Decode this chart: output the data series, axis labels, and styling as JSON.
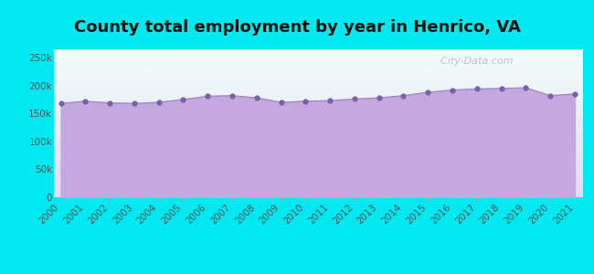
{
  "title": "County total employment by year in Henrico, VA",
  "years": [
    2000,
    2001,
    2002,
    2003,
    2004,
    2005,
    2006,
    2007,
    2008,
    2009,
    2010,
    2011,
    2012,
    2013,
    2014,
    2015,
    2016,
    2017,
    2018,
    2019,
    2020,
    2021
  ],
  "values": [
    168000,
    172000,
    169000,
    168000,
    170000,
    175000,
    181000,
    182000,
    178000,
    170000,
    172000,
    173000,
    176000,
    178000,
    182000,
    188000,
    192000,
    194000,
    195000,
    196000,
    182000,
    185000
  ],
  "ylim": [
    0,
    265000
  ],
  "yticks": [
    0,
    50000,
    100000,
    150000,
    200000,
    250000
  ],
  "ytick_labels": [
    "0",
    "50k",
    "100k",
    "150k",
    "200k",
    "250k"
  ],
  "line_color": "#a08cc0",
  "fill_color": "#c5a8df",
  "fill_alpha": 1.0,
  "marker_color": "#7a60aa",
  "marker_size": 3.5,
  "background_outer": "#00e8f0",
  "background_inner_top": "#f0fff8",
  "background_inner_bottom": "#e8d8f8",
  "title_fontsize": 13,
  "tick_fontsize": 7.5,
  "watermark": "  City-Data.com"
}
